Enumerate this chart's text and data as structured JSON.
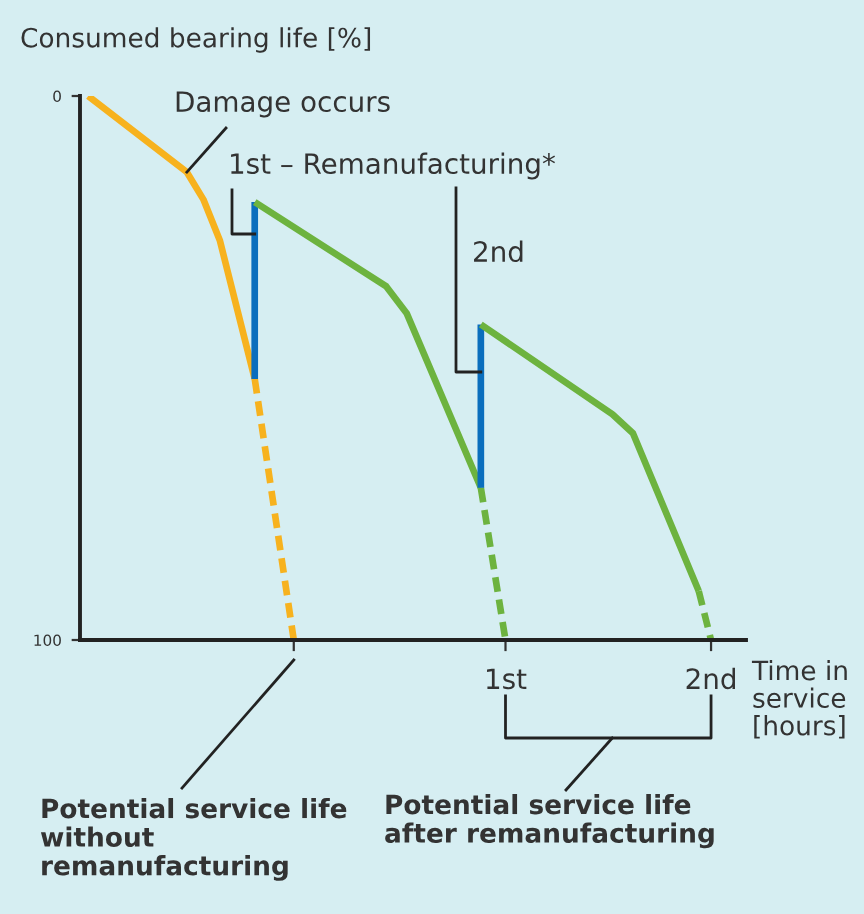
{
  "chart_data": {
    "type": "line",
    "ylabel": "Consumed bearing life [%]",
    "xlabel": "Time in service [hours]",
    "xlim": [
      -1.07,
      2.17
    ],
    "ylim": [
      100,
      0
    ],
    "xticks": [
      {
        "value": -0.03,
        "label": null
      },
      {
        "value": 1,
        "label": "1st"
      },
      {
        "value": 2,
        "label": "2nd"
      }
    ],
    "yticks": [
      0,
      100
    ],
    "grid": false,
    "legend": false,
    "series": [
      {
        "color": "#f7b21e",
        "line_style": "solid",
        "x": [
          -1.03,
          -0.55,
          -0.47,
          -0.39,
          -0.22
        ],
        "values": [
          0,
          14,
          19,
          26.5,
          52
        ]
      },
      {
        "color": "#f7b21e",
        "line_style": "dashed",
        "x": [
          -0.22,
          -0.03
        ],
        "values": [
          52,
          100
        ]
      },
      {
        "color": "#0a6ebd",
        "line_style": "solid",
        "x": [
          -0.22,
          -0.22
        ],
        "values": [
          52,
          19.5
        ]
      },
      {
        "color": "#6db33f",
        "line_style": "solid",
        "x": [
          -0.22,
          0.42,
          0.52,
          0.88
        ],
        "values": [
          19.5,
          35,
          40,
          72
        ]
      },
      {
        "color": "#6db33f",
        "line_style": "dashed",
        "x": [
          0.88,
          1
        ],
        "values": [
          72,
          100
        ]
      },
      {
        "color": "#0a6ebd",
        "line_style": "solid",
        "x": [
          0.88,
          0.88
        ],
        "values": [
          72,
          42
        ]
      },
      {
        "color": "#6db33f",
        "line_style": "solid",
        "x": [
          0.88,
          1.52,
          1.62,
          1.94
        ],
        "values": [
          42,
          58.5,
          62,
          91
        ]
      },
      {
        "color": "#6db33f",
        "line_style": "dashed",
        "x": [
          1.94,
          2
        ],
        "values": [
          91,
          100
        ]
      }
    ],
    "annotations": [
      {
        "text": "Damage occurs",
        "x": -0.55,
        "y": 14
      },
      {
        "text": "1st – Remanufacturing*",
        "x": -0.22,
        "y": 25
      },
      "2nd",
      "Potential service life without remanufacturing",
      "Potential service life after remanufacturing"
    ]
  }
}
